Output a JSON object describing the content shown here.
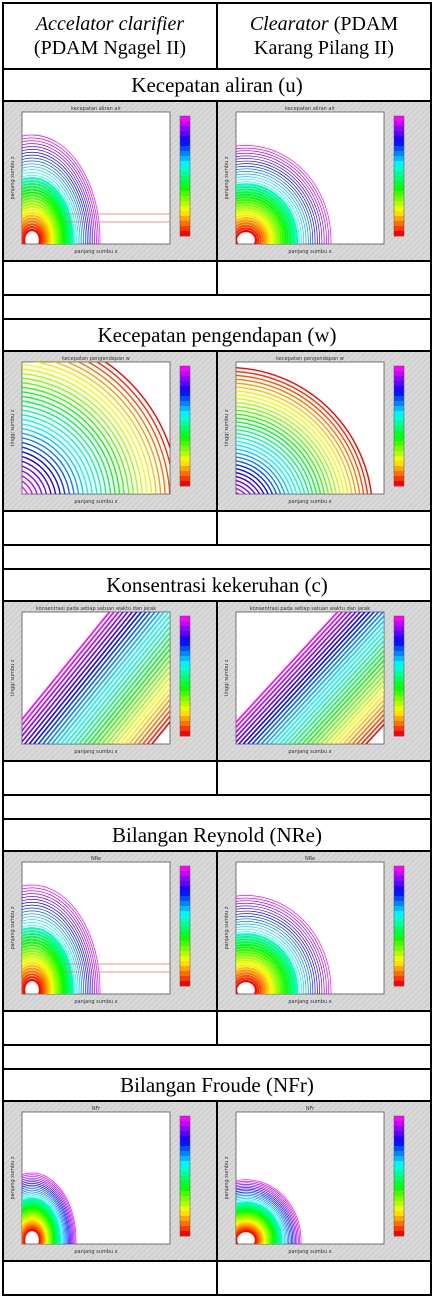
{
  "header": {
    "left": {
      "name": "Accelator clarifier",
      "place": "(PDAM Ngagel II)"
    },
    "right": {
      "name": "Clearator",
      "rest": " (PDAM",
      "place": "Karang Pilang II)"
    }
  },
  "sections": [
    {
      "title": "Kecepatan aliran (u)",
      "plot_title": "kecepatan aliran air",
      "xlabel": "panjang sumbu x",
      "ylabel": "panjang sumbu z",
      "pattern": "corner"
    },
    {
      "title": "Kecepatan pengendapan (w)",
      "plot_title": "kecepatan pengendapan w",
      "xlabel": "panjang sumbu x",
      "ylabel": "tinggi sumbu z",
      "pattern": "arc"
    },
    {
      "title": "Konsentrasi kekeruhan (c)",
      "plot_title": "konsentrasi pada setiap satuan waktu dan jarak",
      "xlabel": "panjang sumbu x",
      "ylabel": "tinggi sumbu z",
      "pattern": "diagonal"
    },
    {
      "title": "Bilangan Reynold (NRe)",
      "plot_title": "NRe",
      "xlabel": "panjang sumbu x",
      "ylabel": "panjang sumbu z",
      "pattern": "corner"
    },
    {
      "title": "Bilangan Froude (NFr)",
      "plot_title": "NFr",
      "xlabel": "panjang sumbu x",
      "ylabel": "panjang sumbu z",
      "pattern": "corner-small"
    }
  ],
  "colors": {
    "grid": "#000000",
    "background": "#d7d7d7"
  }
}
